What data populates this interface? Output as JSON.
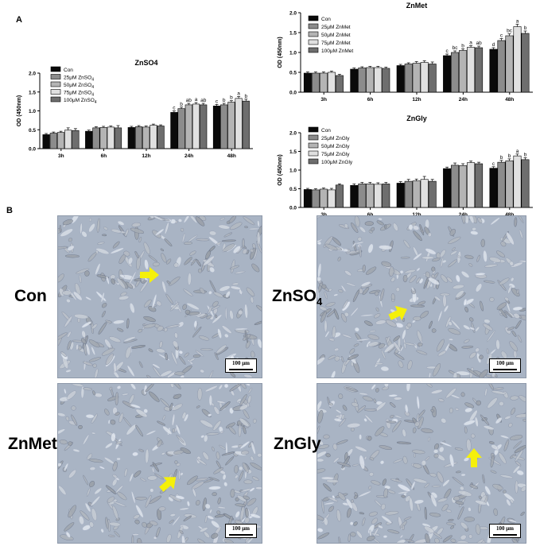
{
  "panels": {
    "a_label": "A",
    "b_label": "B"
  },
  "colors": {
    "con": "#0a0a0a",
    "s25": "#8c8c8c",
    "s50": "#b4b4b4",
    "s75": "#e0e0e0",
    "s100": "#6e6e6e",
    "micro_bg": "#a9b4c4",
    "arrow": "#f5f00a"
  },
  "chart_data": [
    {
      "type": "bar",
      "title": "ZnSO4",
      "ylabel": "OD (450nm)",
      "xlabel": "",
      "ylim": [
        0,
        2.0
      ],
      "yticks": [
        "0.0",
        "0.5",
        "1.0",
        "1.5",
        "2.0"
      ],
      "categories": [
        "3h",
        "6h",
        "12h",
        "24h",
        "48h"
      ],
      "series": [
        {
          "name": "Con",
          "values": [
            0.37,
            0.46,
            0.56,
            0.96,
            1.13
          ],
          "errors": [
            0.03,
            0.03,
            0.03,
            0.04,
            0.04
          ]
        },
        {
          "name": "25μM ZnSO4",
          "values": [
            0.41,
            0.55,
            0.58,
            1.06,
            1.16
          ],
          "errors": [
            0.03,
            0.03,
            0.03,
            0.04,
            0.04
          ]
        },
        {
          "name": "50μM ZnSO4",
          "values": [
            0.43,
            0.56,
            0.57,
            1.16,
            1.23
          ],
          "errors": [
            0.03,
            0.03,
            0.03,
            0.04,
            0.04
          ]
        },
        {
          "name": "75μM ZnSO4",
          "values": [
            0.49,
            0.57,
            0.62,
            1.18,
            1.33
          ],
          "errors": [
            0.06,
            0.03,
            0.03,
            0.04,
            0.05
          ]
        },
        {
          "name": "100μM ZnSO4",
          "values": [
            0.48,
            0.55,
            0.6,
            1.16,
            1.26
          ],
          "errors": [
            0.05,
            0.06,
            0.03,
            0.04,
            0.05
          ]
        }
      ],
      "letters": [
        {
          "category": "24h",
          "labels": [
            "c",
            "b",
            "ab",
            "a",
            "ab"
          ]
        },
        {
          "category": "48h",
          "labels": [
            "c",
            "b",
            "b",
            "a",
            "b"
          ]
        }
      ],
      "legend": [
        "Con",
        "25μM ZnSO4",
        "50μM ZnSO4",
        "75μM ZnSO4",
        "100μM ZnSO4"
      ],
      "legend_sub": "4"
    },
    {
      "type": "bar",
      "title": "ZnMet",
      "ylabel": "OD (450nm)",
      "xlabel": "",
      "ylim": [
        0,
        2.0
      ],
      "yticks": [
        "0.0",
        "0.5",
        "1.0",
        "1.5",
        "2.0"
      ],
      "categories": [
        "3h",
        "6h",
        "12h",
        "24h",
        "48h"
      ],
      "series": [
        {
          "name": "Con",
          "values": [
            0.48,
            0.58,
            0.67,
            0.92,
            1.08
          ],
          "errors": [
            0.03,
            0.03,
            0.03,
            0.04,
            0.04
          ]
        },
        {
          "name": "25μM ZnMet",
          "values": [
            0.48,
            0.61,
            0.71,
            1.0,
            1.3
          ],
          "errors": [
            0.03,
            0.03,
            0.03,
            0.04,
            0.05
          ]
        },
        {
          "name": "50μM ZnMet",
          "values": [
            0.48,
            0.62,
            0.73,
            1.05,
            1.42
          ],
          "errors": [
            0.03,
            0.03,
            0.04,
            0.04,
            0.05
          ]
        },
        {
          "name": "75μM ZnMet",
          "values": [
            0.5,
            0.62,
            0.75,
            1.13,
            1.65
          ],
          "errors": [
            0.03,
            0.03,
            0.04,
            0.04,
            0.06
          ]
        },
        {
          "name": "100μM ZnMet",
          "values": [
            0.42,
            0.6,
            0.71,
            1.12,
            1.48
          ],
          "errors": [
            0.03,
            0.03,
            0.05,
            0.04,
            0.06
          ]
        }
      ],
      "letters": [
        {
          "category": "24h",
          "labels": [
            "c",
            "bc",
            "b",
            "a",
            "ab"
          ]
        },
        {
          "category": "48h",
          "labels": [
            "d",
            "c",
            "bc",
            "a",
            "b"
          ]
        }
      ],
      "legend": [
        "Con",
        "25μM ZnMet",
        "50μM ZnMet",
        "75μM ZnMet",
        "100μM ZnMet"
      ],
      "legend_sub": ""
    },
    {
      "type": "bar",
      "title": "ZnGly",
      "ylabel": "OD (450nm)",
      "xlabel": "",
      "ylim": [
        0,
        2.0
      ],
      "yticks": [
        "0.0",
        "0.5",
        "1.0",
        "1.5",
        "2.0"
      ],
      "categories": [
        "3h",
        "6h",
        "12h",
        "24h",
        "48h"
      ],
      "series": [
        {
          "name": "Con",
          "values": [
            0.48,
            0.59,
            0.65,
            1.04,
            1.05
          ],
          "errors": [
            0.03,
            0.04,
            0.04,
            0.04,
            0.04
          ]
        },
        {
          "name": "25μM ZnGly",
          "values": [
            0.47,
            0.63,
            0.7,
            1.13,
            1.21
          ],
          "errors": [
            0.03,
            0.04,
            0.05,
            0.06,
            0.05
          ]
        },
        {
          "name": "50μM ZnGly",
          "values": [
            0.49,
            0.63,
            0.71,
            1.12,
            1.25
          ],
          "errors": [
            0.03,
            0.04,
            0.05,
            0.05,
            0.05
          ]
        },
        {
          "name": "75μM ZnGly",
          "values": [
            0.47,
            0.62,
            0.75,
            1.2,
            1.38
          ],
          "errors": [
            0.04,
            0.04,
            0.08,
            0.04,
            0.05
          ]
        },
        {
          "name": "100μM ZnGly",
          "values": [
            0.6,
            0.63,
            0.7,
            1.17,
            1.28
          ],
          "errors": [
            0.03,
            0.04,
            0.05,
            0.04,
            0.05
          ]
        }
      ],
      "letters": [
        {
          "category": "48h",
          "labels": [
            "c",
            "b",
            "b",
            "a",
            "b"
          ]
        }
      ],
      "legend": [
        "Con",
        "25μM ZnGly",
        "50μM ZnGly",
        "75μM ZnGly",
        "100μM ZnGly"
      ],
      "legend_sub": ""
    }
  ],
  "micrographs": [
    {
      "key": "con",
      "label": "Con",
      "scale": "100 μm"
    },
    {
      "key": "znso4",
      "label": "ZnSO",
      "label_sub": "4",
      "scale": "100 μm"
    },
    {
      "key": "znmet",
      "label": "ZnMet",
      "scale": "100 μm"
    },
    {
      "key": "zngly",
      "label": "ZnGly",
      "scale": "100 μm"
    }
  ]
}
